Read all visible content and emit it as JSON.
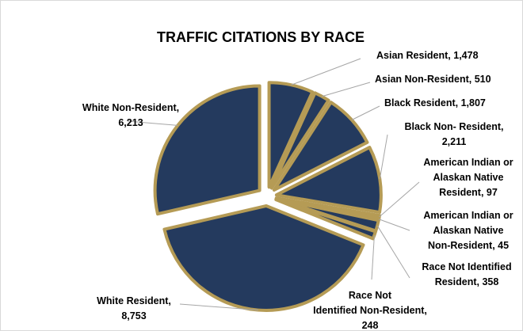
{
  "chart_data": {
    "type": "pie",
    "title": "TRAFFIC CITATIONS BY RACE",
    "categories": [
      "Asian Resident",
      "Asian Non-Resident",
      "Black Resident",
      "Black Non- Resident",
      "American Indian or Alaskan Native Resident",
      "American Indian or Alaskan Native Non-Resident",
      "Race Not Identified Resident",
      "Race Not Identified Non-Resident",
      "White Resident",
      "White Non-Resident"
    ],
    "values": [
      1478,
      510,
      1807,
      2211,
      97,
      45,
      358,
      248,
      8753,
      6213
    ],
    "value_labels": [
      "1,478",
      "510",
      "1,807",
      "2,211",
      "97",
      "45",
      "358",
      "248",
      "8,753",
      "6,213"
    ],
    "exploded": true,
    "legend": "none",
    "colors": {
      "slice_fill": "#243a5e",
      "slice_border": "#b59b55",
      "leader_line": "#a6a6a6"
    }
  }
}
